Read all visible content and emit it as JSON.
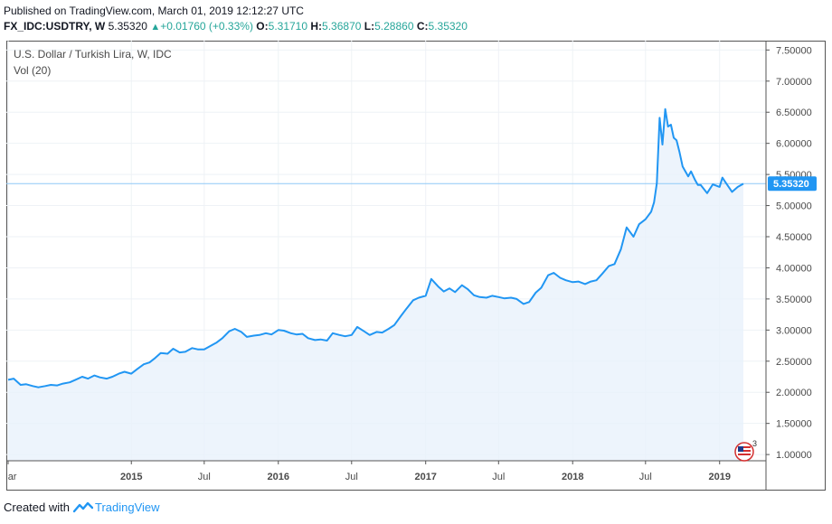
{
  "header": {
    "published": "Published on TradingView.com, March 01, 2019 12:12:27 UTC",
    "symbol": "FX_IDC:USDTRY, W",
    "last": "5.35320",
    "change": "+0.01760 (+0.33%)",
    "open_label": "O:",
    "open": "5.31710",
    "high_label": "H:",
    "high": "5.36870",
    "low_label": "L:",
    "low": "5.28860",
    "close_label": "C:",
    "close": "5.35320"
  },
  "legend": {
    "title": "U.S. Dollar / Turkish Lira, W, IDC",
    "indicator": "Vol (20)"
  },
  "footer": {
    "created_with": "Created with",
    "brand": "TradingView"
  },
  "colors": {
    "line": "#2196f3",
    "area": "#e8f1fb",
    "price_tag": "#2196f3",
    "grid": "#eef2f6",
    "up": "#26a69a"
  },
  "chart_data": {
    "type": "area",
    "title": "U.S. Dollar / Turkish Lira, W, IDC",
    "y_ticks": [
      "1.00000",
      "1.50000",
      "2.00000",
      "2.50000",
      "3.00000",
      "3.50000",
      "4.00000",
      "4.50000",
      "5.00000",
      "5.50000",
      "6.00000",
      "6.50000",
      "7.00000",
      "7.50000"
    ],
    "ylim": [
      0.9,
      7.65
    ],
    "x_ticks": [
      {
        "label": "Mar",
        "date": "2014-03-01",
        "bold": false
      },
      {
        "label": "2015",
        "date": "2015-01-01",
        "bold": true
      },
      {
        "label": "Jul",
        "date": "2015-07-01",
        "bold": false
      },
      {
        "label": "2016",
        "date": "2016-01-01",
        "bold": true
      },
      {
        "label": "Jul",
        "date": "2016-07-01",
        "bold": false
      },
      {
        "label": "2017",
        "date": "2017-01-01",
        "bold": true
      },
      {
        "label": "Jul",
        "date": "2017-07-01",
        "bold": false
      },
      {
        "label": "2018",
        "date": "2018-01-01",
        "bold": true
      },
      {
        "label": "Jul",
        "date": "2018-07-01",
        "bold": false
      },
      {
        "label": "2019",
        "date": "2019-01-01",
        "bold": true
      }
    ],
    "last_price_label": "5.35320",
    "last_price": 5.3532,
    "series": [
      {
        "points": [
          [
            "2014-03-01",
            2.2
          ],
          [
            "2014-03-15",
            2.22
          ],
          [
            "2014-04-01",
            2.12
          ],
          [
            "2014-04-15",
            2.13
          ],
          [
            "2014-05-01",
            2.1
          ],
          [
            "2014-05-15",
            2.08
          ],
          [
            "2014-06-01",
            2.1
          ],
          [
            "2014-06-15",
            2.12
          ],
          [
            "2014-07-01",
            2.11
          ],
          [
            "2014-07-15",
            2.14
          ],
          [
            "2014-08-01",
            2.16
          ],
          [
            "2014-08-15",
            2.2
          ],
          [
            "2014-09-01",
            2.25
          ],
          [
            "2014-09-15",
            2.22
          ],
          [
            "2014-10-01",
            2.27
          ],
          [
            "2014-10-15",
            2.24
          ],
          [
            "2014-11-01",
            2.22
          ],
          [
            "2014-11-15",
            2.25
          ],
          [
            "2014-12-01",
            2.3
          ],
          [
            "2014-12-15",
            2.33
          ],
          [
            "2015-01-01",
            2.3
          ],
          [
            "2015-01-15",
            2.37
          ],
          [
            "2015-02-01",
            2.45
          ],
          [
            "2015-02-15",
            2.48
          ],
          [
            "2015-03-01",
            2.55
          ],
          [
            "2015-03-15",
            2.63
          ],
          [
            "2015-04-01",
            2.62
          ],
          [
            "2015-04-15",
            2.7
          ],
          [
            "2015-05-01",
            2.64
          ],
          [
            "2015-05-15",
            2.65
          ],
          [
            "2015-06-01",
            2.71
          ],
          [
            "2015-06-15",
            2.69
          ],
          [
            "2015-07-01",
            2.69
          ],
          [
            "2015-07-15",
            2.74
          ],
          [
            "2015-08-01",
            2.8
          ],
          [
            "2015-08-15",
            2.87
          ],
          [
            "2015-09-01",
            2.98
          ],
          [
            "2015-09-15",
            3.02
          ],
          [
            "2015-10-01",
            2.97
          ],
          [
            "2015-10-15",
            2.89
          ],
          [
            "2015-11-01",
            2.91
          ],
          [
            "2015-11-15",
            2.92
          ],
          [
            "2015-12-01",
            2.95
          ],
          [
            "2015-12-15",
            2.93
          ],
          [
            "2016-01-01",
            3.0
          ],
          [
            "2016-01-15",
            2.99
          ],
          [
            "2016-02-01",
            2.95
          ],
          [
            "2016-02-15",
            2.93
          ],
          [
            "2016-03-01",
            2.94
          ],
          [
            "2016-03-15",
            2.87
          ],
          [
            "2016-04-01",
            2.84
          ],
          [
            "2016-04-15",
            2.85
          ],
          [
            "2016-05-01",
            2.83
          ],
          [
            "2016-05-15",
            2.95
          ],
          [
            "2016-06-01",
            2.92
          ],
          [
            "2016-06-15",
            2.9
          ],
          [
            "2016-07-01",
            2.92
          ],
          [
            "2016-07-15",
            3.05
          ],
          [
            "2016-08-01",
            2.98
          ],
          [
            "2016-08-15",
            2.92
          ],
          [
            "2016-09-01",
            2.97
          ],
          [
            "2016-09-15",
            2.96
          ],
          [
            "2016-10-01",
            3.02
          ],
          [
            "2016-10-15",
            3.08
          ],
          [
            "2016-11-01",
            3.23
          ],
          [
            "2016-11-15",
            3.35
          ],
          [
            "2016-12-01",
            3.48
          ],
          [
            "2016-12-15",
            3.52
          ],
          [
            "2017-01-01",
            3.55
          ],
          [
            "2017-01-15",
            3.82
          ],
          [
            "2017-02-01",
            3.7
          ],
          [
            "2017-02-15",
            3.62
          ],
          [
            "2017-03-01",
            3.67
          ],
          [
            "2017-03-15",
            3.61
          ],
          [
            "2017-04-01",
            3.72
          ],
          [
            "2017-04-15",
            3.66
          ],
          [
            "2017-05-01",
            3.56
          ],
          [
            "2017-05-15",
            3.53
          ],
          [
            "2017-06-01",
            3.52
          ],
          [
            "2017-06-15",
            3.55
          ],
          [
            "2017-07-01",
            3.53
          ],
          [
            "2017-07-15",
            3.51
          ],
          [
            "2017-08-01",
            3.52
          ],
          [
            "2017-08-15",
            3.5
          ],
          [
            "2017-09-01",
            3.42
          ],
          [
            "2017-09-15",
            3.45
          ],
          [
            "2017-10-01",
            3.6
          ],
          [
            "2017-10-15",
            3.68
          ],
          [
            "2017-11-01",
            3.88
          ],
          [
            "2017-11-15",
            3.92
          ],
          [
            "2017-12-01",
            3.84
          ],
          [
            "2017-12-15",
            3.8
          ],
          [
            "2018-01-01",
            3.77
          ],
          [
            "2018-01-15",
            3.78
          ],
          [
            "2018-02-01",
            3.74
          ],
          [
            "2018-02-15",
            3.78
          ],
          [
            "2018-03-01",
            3.8
          ],
          [
            "2018-03-15",
            3.9
          ],
          [
            "2018-04-01",
            4.03
          ],
          [
            "2018-04-15",
            4.06
          ],
          [
            "2018-05-01",
            4.3
          ],
          [
            "2018-05-15",
            4.65
          ],
          [
            "2018-06-01",
            4.5
          ],
          [
            "2018-06-15",
            4.7
          ],
          [
            "2018-07-01",
            4.78
          ],
          [
            "2018-07-15",
            4.9
          ],
          [
            "2018-07-22",
            5.05
          ],
          [
            "2018-07-29",
            5.36
          ],
          [
            "2018-08-05",
            6.41
          ],
          [
            "2018-08-12",
            5.98
          ],
          [
            "2018-08-19",
            6.55
          ],
          [
            "2018-08-26",
            6.27
          ],
          [
            "2018-09-02",
            6.3
          ],
          [
            "2018-09-09",
            6.09
          ],
          [
            "2018-09-16",
            6.05
          ],
          [
            "2018-09-23",
            5.87
          ],
          [
            "2018-10-01",
            5.63
          ],
          [
            "2018-10-08",
            5.55
          ],
          [
            "2018-10-15",
            5.47
          ],
          [
            "2018-10-22",
            5.55
          ],
          [
            "2018-11-01",
            5.41
          ],
          [
            "2018-11-08",
            5.33
          ],
          [
            "2018-11-15",
            5.33
          ],
          [
            "2018-12-01",
            5.2
          ],
          [
            "2018-12-15",
            5.34
          ],
          [
            "2019-01-01",
            5.3
          ],
          [
            "2019-01-08",
            5.45
          ],
          [
            "2019-01-15",
            5.38
          ],
          [
            "2019-02-01",
            5.22
          ],
          [
            "2019-02-15",
            5.3
          ],
          [
            "2019-03-01",
            5.35
          ]
        ]
      }
    ]
  }
}
